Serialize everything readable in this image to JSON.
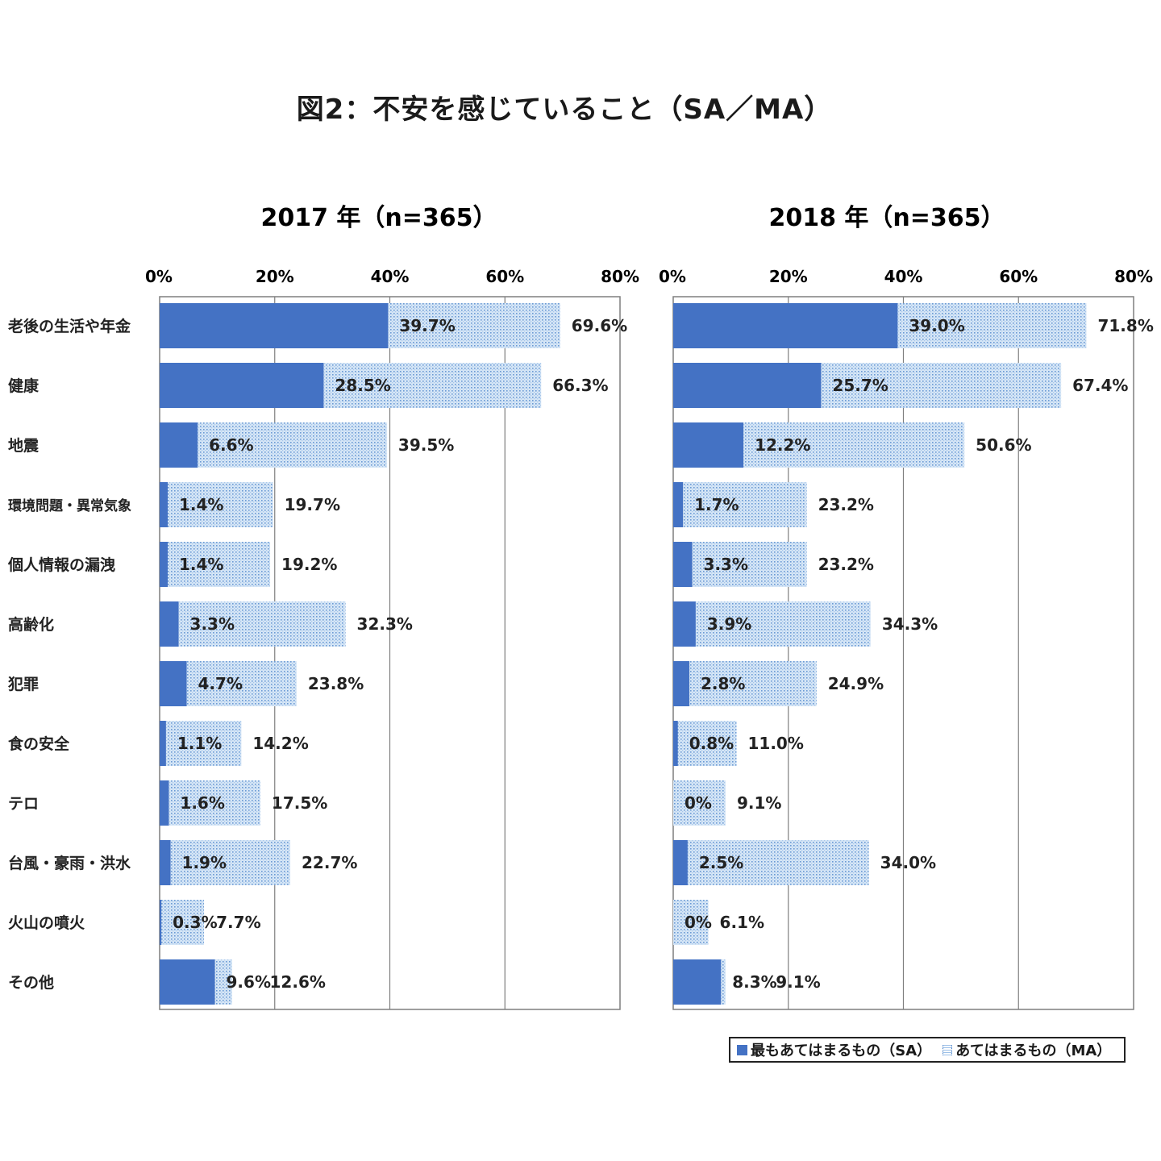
{
  "title": "図2：不安を感じていること（SA／MA）",
  "legend": {
    "sa": "最もあてはまるもの（SA）",
    "ma": "あてはまるもの（MA）"
  },
  "colors": {
    "sa": "#4472c4",
    "ma_fill": "#c9def3",
    "ma_dot": "#5b8fd0",
    "grid": "#7f7f7f"
  },
  "chart_data": [
    {
      "type": "bar",
      "orientation": "horizontal",
      "title": "2017 年（n=365）",
      "xlim": [
        0,
        80
      ],
      "ticks": [
        "0%",
        "20%",
        "40%",
        "60%",
        "80%"
      ],
      "grid": true,
      "categories": [
        "老後の生活や年金",
        "健康",
        "地震",
        "環境問題・異常気象",
        "個人情報の漏洩",
        "高齢化",
        "犯罪",
        "食の安全",
        "テロ",
        "台風・豪雨・洪水",
        "火山の噴火",
        "その他"
      ],
      "series": [
        {
          "name": "最もあてはまるもの（SA）",
          "values": [
            39.7,
            28.5,
            6.6,
            1.4,
            1.4,
            3.3,
            4.7,
            1.1,
            1.6,
            1.9,
            0.3,
            9.6
          ],
          "labels": [
            "39.7%",
            "28.5%",
            "6.6%",
            "1.4%",
            "1.4%",
            "3.3%",
            "4.7%",
            "1.1%",
            "1.6%",
            "1.9%",
            "0.3%",
            "9.6%"
          ]
        },
        {
          "name": "あてはまるもの（MA）",
          "values": [
            69.6,
            66.3,
            39.5,
            19.7,
            19.2,
            32.3,
            23.8,
            14.2,
            17.5,
            22.7,
            7.7,
            12.6
          ],
          "labels": [
            "69.6%",
            "66.3%",
            "39.5%",
            "19.7%",
            "19.2%",
            "32.3%",
            "23.8%",
            "14.2%",
            "17.5%",
            "22.7%",
            "7.7%",
            "12.6%"
          ]
        }
      ]
    },
    {
      "type": "bar",
      "orientation": "horizontal",
      "title": "2018 年（n=365）",
      "xlim": [
        0,
        80
      ],
      "ticks": [
        "0%",
        "20%",
        "40%",
        "60%",
        "80%"
      ],
      "grid": true,
      "categories": [
        "老後の生活や年金",
        "健康",
        "地震",
        "環境問題・異常気象",
        "個人情報の漏洩",
        "高齢化",
        "犯罪",
        "食の安全",
        "テロ",
        "台風・豪雨・洪水",
        "火山の噴火",
        "その他"
      ],
      "series": [
        {
          "name": "最もあてはまるもの（SA）",
          "values": [
            39.0,
            25.7,
            12.2,
            1.7,
            3.3,
            3.9,
            2.8,
            0.8,
            0,
            2.5,
            0,
            8.3
          ],
          "labels": [
            "39.0%",
            "25.7%",
            "12.2%",
            "1.7%",
            "3.3%",
            "3.9%",
            "2.8%",
            "0.8%",
            "0%",
            "2.5%",
            "0%",
            "8.3%"
          ]
        },
        {
          "name": "あてはまるもの（MA）",
          "values": [
            71.8,
            67.4,
            50.6,
            23.2,
            23.2,
            34.3,
            24.9,
            11.0,
            9.1,
            34.0,
            6.1,
            9.1
          ],
          "labels": [
            "71.8%",
            "67.4%",
            "50.6%",
            "23.2%",
            "23.2%",
            "34.3%",
            "24.9%",
            "11.0%",
            "9.1%",
            "34.0%",
            "6.1%",
            "9.1%"
          ]
        }
      ]
    }
  ]
}
